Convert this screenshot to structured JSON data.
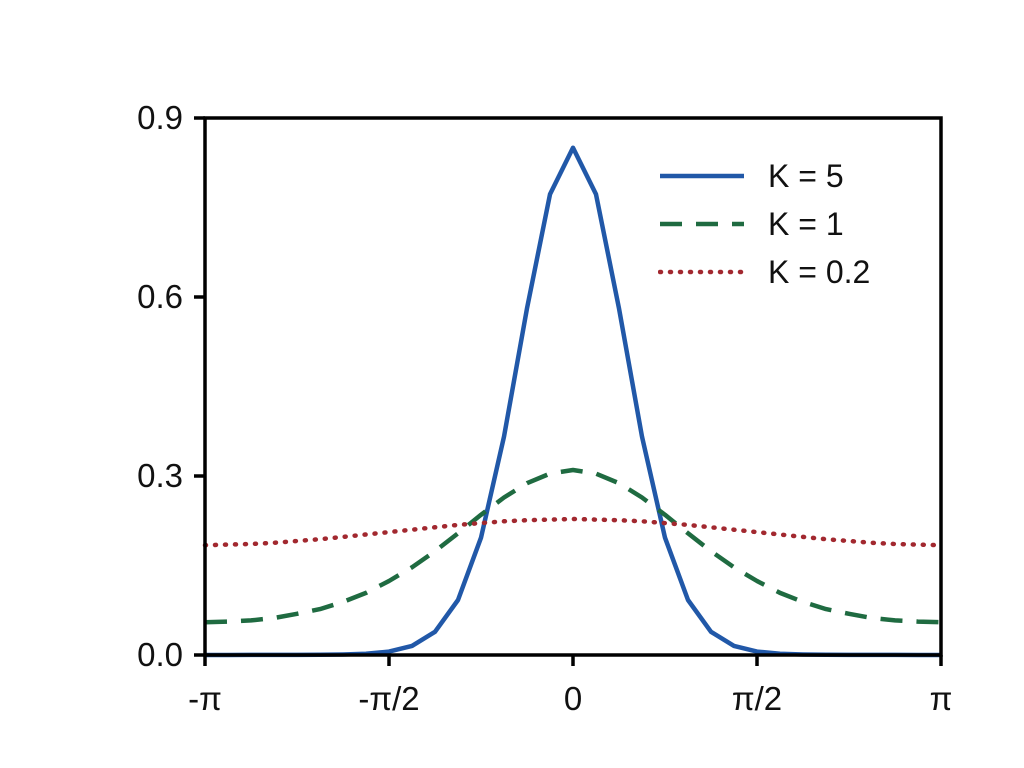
{
  "chart_data": {
    "type": "line",
    "title": "",
    "xlabel": "",
    "ylabel": "",
    "grid": false,
    "legend_position": "upper right",
    "xlim_over_pi": [
      -1,
      1
    ],
    "ylim": [
      0,
      0.9
    ],
    "x_over_pi": [
      -1,
      -0.9375,
      -0.875,
      -0.8125,
      -0.75,
      -0.6875,
      -0.625,
      -0.5625,
      -0.5,
      -0.4375,
      -0.375,
      -0.3125,
      -0.25,
      -0.1875,
      -0.125,
      -0.0625,
      0,
      0.0625,
      0.125,
      0.1875,
      0.25,
      0.3125,
      0.375,
      0.4375,
      0.5,
      0.5625,
      0.625,
      0.6875,
      0.75,
      0.8125,
      0.875,
      0.9375,
      1
    ],
    "series": [
      {
        "name": "K = 5",
        "style": "solid",
        "color": "#2158a8",
        "values": [
          0.0,
          0.0,
          0.0001,
          0.0001,
          0.0002,
          0.0004,
          0.0008,
          0.0022,
          0.0057,
          0.0152,
          0.0388,
          0.0921,
          0.1966,
          0.366,
          0.5809,
          0.7721,
          0.85,
          0.7721,
          0.5809,
          0.366,
          0.1966,
          0.0921,
          0.0388,
          0.0152,
          0.0057,
          0.0022,
          0.0008,
          0.0004,
          0.0002,
          0.0001,
          0.0001,
          0.0,
          0.0
        ]
      },
      {
        "name": "K = 1",
        "style": "dashed",
        "color": "#1f6b41",
        "values": [
          0.055,
          0.056,
          0.058,
          0.062,
          0.069,
          0.077,
          0.089,
          0.104,
          0.124,
          0.147,
          0.174,
          0.204,
          0.235,
          0.264,
          0.288,
          0.304,
          0.31,
          0.304,
          0.288,
          0.264,
          0.235,
          0.204,
          0.174,
          0.147,
          0.124,
          0.104,
          0.089,
          0.077,
          0.069,
          0.062,
          0.058,
          0.056,
          0.055
        ]
      },
      {
        "name": "K = 0.2",
        "style": "dotted",
        "color": "#a2282f",
        "values": [
          0.184,
          0.185,
          0.186,
          0.188,
          0.191,
          0.194,
          0.198,
          0.202,
          0.206,
          0.21,
          0.214,
          0.218,
          0.221,
          0.224,
          0.226,
          0.227,
          0.228,
          0.227,
          0.226,
          0.224,
          0.221,
          0.218,
          0.214,
          0.21,
          0.206,
          0.202,
          0.198,
          0.194,
          0.191,
          0.188,
          0.186,
          0.185,
          0.184
        ]
      }
    ],
    "xticks": {
      "positions_over_pi": [
        -1,
        -0.5,
        0,
        0.5,
        1
      ],
      "labels": [
        "-π",
        "-π/2",
        "0",
        "π/2",
        "π"
      ]
    },
    "yticks": {
      "positions": [
        0,
        0.3,
        0.6,
        0.9
      ],
      "labels": [
        "0.0",
        "0.3",
        "0.6",
        "0.9"
      ]
    }
  },
  "colors": {
    "background": "#ffffff",
    "axis": "#000000",
    "text": "#111111"
  }
}
